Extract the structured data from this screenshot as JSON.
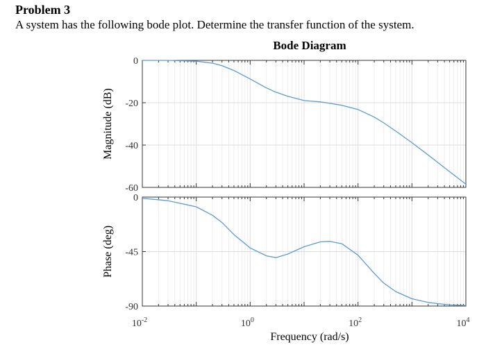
{
  "problem": {
    "heading": "Problem 3",
    "statement": "A system has the following bode plot. Determine the transfer function of the system."
  },
  "chart_data": {
    "type": "line",
    "title": "Bode Diagram",
    "xlabel": "Frequency (rad/s)",
    "xscale": "log",
    "xlim": [
      0.01,
      10000
    ],
    "x_ticks": [
      {
        "base": "10",
        "exp": "-2",
        "value": 0.01
      },
      {
        "base": "10",
        "exp": "0",
        "value": 1
      },
      {
        "base": "10",
        "exp": "2",
        "value": 100
      },
      {
        "base": "10",
        "exp": "4",
        "value": 10000
      }
    ],
    "grid": true,
    "color": "#5b9bd5",
    "subplots": [
      {
        "name": "magnitude",
        "ylabel": "Magnitude (dB)",
        "ylim": [
          -60,
          0
        ],
        "y_ticks": [
          "0",
          "-20",
          "-40",
          "-60"
        ],
        "y_tick_values": [
          0,
          -20,
          -40,
          -60
        ],
        "series": {
          "x": [
            0.01,
            0.03,
            0.1,
            0.2,
            0.3,
            0.5,
            1,
            2,
            3,
            5,
            10,
            20,
            30,
            50,
            100,
            200,
            300,
            500,
            1000,
            2000,
            3000,
            5000,
            10000
          ],
          "values": [
            0,
            0,
            -0.4,
            -1.3,
            -2.5,
            -4.8,
            -8.8,
            -13,
            -15,
            -17,
            -19,
            -19.6,
            -20.3,
            -21.2,
            -23.2,
            -26.8,
            -29.5,
            -33.4,
            -38.9,
            -44.7,
            -48.2,
            -52.6,
            -58.5
          ]
        }
      },
      {
        "name": "phase",
        "ylabel": "Phase (deg)",
        "ylim": [
          -90,
          0
        ],
        "y_ticks": [
          "0",
          "-45",
          "-90"
        ],
        "y_tick_values": [
          0,
          -45,
          -90
        ],
        "series": {
          "x": [
            0.01,
            0.03,
            0.1,
            0.2,
            0.3,
            0.5,
            1,
            2,
            3,
            5,
            10,
            20,
            30,
            50,
            100,
            200,
            300,
            500,
            1000,
            2000,
            3000,
            5000,
            10000
          ],
          "values": [
            -1,
            -3,
            -8,
            -15,
            -21,
            -31,
            -42,
            -48.5,
            -50,
            -47,
            -41,
            -37,
            -36.5,
            -38.5,
            -48,
            -63,
            -71,
            -78,
            -84,
            -87,
            -88,
            -89,
            -89.5
          ]
        }
      }
    ]
  }
}
